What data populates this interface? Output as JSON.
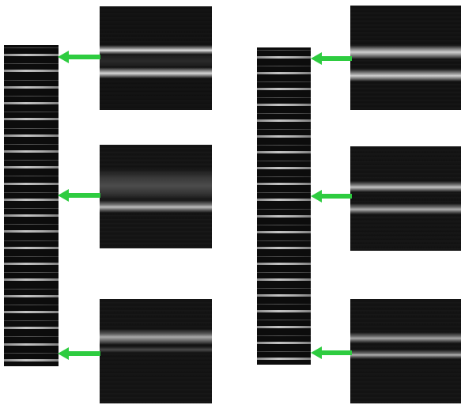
{
  "arrow_color": "#2ecc40",
  "strips": [
    {
      "name": "left-strip",
      "bands": 20
    },
    {
      "name": "right-strip",
      "bands": 20
    }
  ]
}
